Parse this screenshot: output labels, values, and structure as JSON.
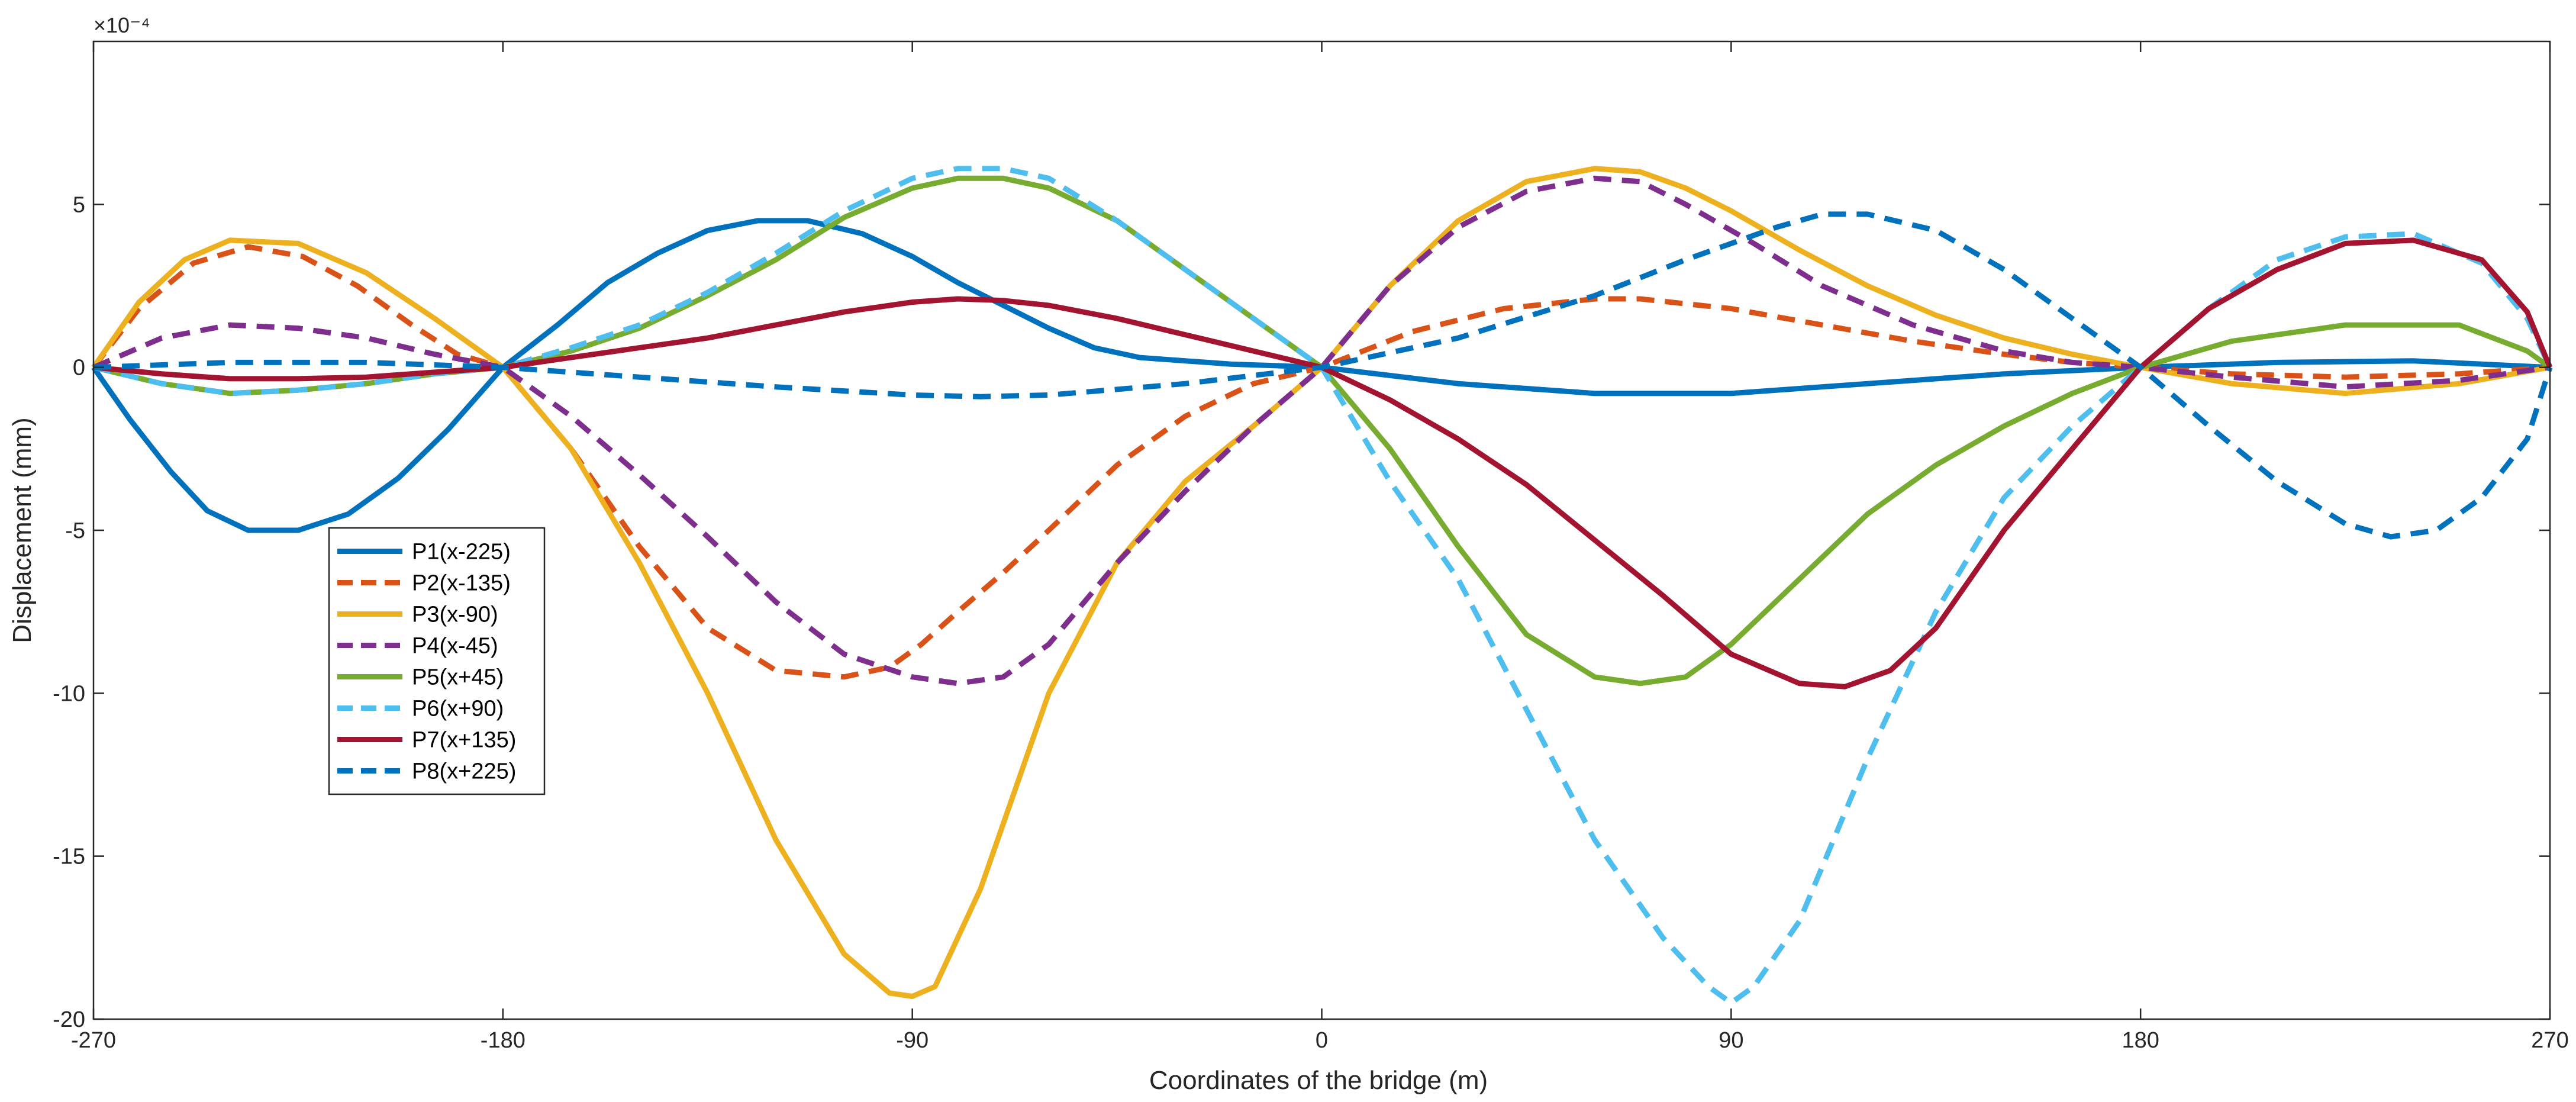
{
  "chart_data": {
    "type": "line",
    "xlabel": "Coordinates of the bridge (m)",
    "ylabel": "Displacement (mm)",
    "y_exponent_label": "×10⁻⁴",
    "xlim": [
      -270,
      270
    ],
    "ylim": [
      -20,
      10
    ],
    "x_ticks": [
      -270,
      -180,
      -90,
      0,
      90,
      180,
      270
    ],
    "y_ticks": [
      -20,
      -15,
      -10,
      -5,
      0,
      5
    ],
    "x_tick_labels": [
      "-270",
      "-180",
      "-90",
      "0",
      "90",
      "180",
      "270"
    ],
    "y_tick_labels": [
      "-20",
      "-15",
      "-10",
      "-5",
      "0",
      "5"
    ],
    "legend_position": "left-center",
    "grid": false,
    "series": [
      {
        "name": "P1(x-225)",
        "color": "#0072BD",
        "dash": "solid",
        "x": [
          -270,
          -262,
          -253,
          -245,
          -236,
          -225,
          -214,
          -203,
          -192,
          -180,
          -168,
          -157,
          -146,
          -135,
          -124,
          -113,
          -101,
          -90,
          -80,
          -70,
          -60,
          -50,
          -40,
          -30,
          -20,
          -10,
          0,
          30,
          60,
          90,
          120,
          150,
          180,
          210,
          240,
          270
        ],
        "y": [
          0,
          -1.6,
          -3.2,
          -4.4,
          -5.0,
          -5.0,
          -4.5,
          -3.4,
          -1.9,
          0,
          1.3,
          2.6,
          3.5,
          4.2,
          4.5,
          4.5,
          4.1,
          3.4,
          2.6,
          1.9,
          1.2,
          0.6,
          0.3,
          0.2,
          0.1,
          0.05,
          0,
          -0.5,
          -0.8,
          -0.8,
          -0.5,
          -0.2,
          0,
          0.15,
          0.2,
          0
        ]
      },
      {
        "name": "P2(x-135)",
        "color": "#D95319",
        "dash": "dashed",
        "x": [
          -270,
          -260,
          -248,
          -236,
          -224,
          -212,
          -200,
          -190,
          -180,
          -165,
          -150,
          -135,
          -120,
          -105,
          -95,
          -88,
          -80,
          -70,
          -60,
          -45,
          -30,
          -15,
          0,
          20,
          40,
          60,
          70,
          90,
          110,
          130,
          150,
          165,
          180,
          200,
          225,
          250,
          270
        ],
        "y": [
          0,
          1.8,
          3.2,
          3.7,
          3.4,
          2.5,
          1.3,
          0.4,
          0,
          -2.5,
          -5.5,
          -8.0,
          -9.3,
          -9.5,
          -9.2,
          -8.5,
          -7.5,
          -6.3,
          -5.0,
          -3.0,
          -1.5,
          -0.5,
          0,
          1.1,
          1.8,
          2.1,
          2.1,
          1.8,
          1.3,
          0.8,
          0.4,
          0.15,
          0,
          -0.2,
          -0.3,
          -0.2,
          0
        ]
      },
      {
        "name": "P3(x-90)",
        "color": "#EDB120",
        "dash": "solid",
        "x": [
          -270,
          -260,
          -250,
          -240,
          -225,
          -210,
          -195,
          -180,
          -165,
          -150,
          -135,
          -120,
          -105,
          -95,
          -90,
          -85,
          -75,
          -60,
          -45,
          -30,
          -15,
          0,
          15,
          30,
          45,
          60,
          70,
          80,
          90,
          105,
          120,
          135,
          150,
          165,
          180,
          200,
          225,
          250,
          270
        ],
        "y": [
          0,
          2.0,
          3.3,
          3.9,
          3.8,
          2.9,
          1.5,
          0,
          -2.5,
          -6.0,
          -10.0,
          -14.5,
          -18.0,
          -19.2,
          -19.3,
          -19.0,
          -16.0,
          -10.0,
          -6.0,
          -3.5,
          -1.8,
          0,
          2.5,
          4.5,
          5.7,
          6.1,
          6.0,
          5.5,
          4.8,
          3.6,
          2.5,
          1.6,
          0.9,
          0.4,
          0,
          -0.5,
          -0.8,
          -0.5,
          0
        ]
      },
      {
        "name": "P4(x-45)",
        "color": "#7E2F8E",
        "dash": "dashed",
        "x": [
          -270,
          -255,
          -240,
          -225,
          -210,
          -195,
          -180,
          -165,
          -150,
          -135,
          -120,
          -105,
          -90,
          -80,
          -70,
          -60,
          -45,
          -30,
          -15,
          0,
          15,
          30,
          45,
          60,
          70,
          80,
          95,
          110,
          130,
          150,
          165,
          180,
          200,
          225,
          250,
          270
        ],
        "y": [
          0,
          0.9,
          1.3,
          1.2,
          0.9,
          0.4,
          0,
          -1.5,
          -3.3,
          -5.2,
          -7.2,
          -8.8,
          -9.5,
          -9.7,
          -9.5,
          -8.5,
          -6.0,
          -3.8,
          -1.8,
          0,
          2.5,
          4.3,
          5.4,
          5.8,
          5.7,
          5.0,
          3.8,
          2.5,
          1.3,
          0.5,
          0.15,
          0,
          -0.3,
          -0.6,
          -0.4,
          0
        ]
      },
      {
        "name": "P5(x+45)",
        "color": "#77AC30",
        "dash": "solid",
        "x": [
          -270,
          -255,
          -240,
          -225,
          -210,
          -195,
          -180,
          -165,
          -150,
          -135,
          -120,
          -105,
          -90,
          -80,
          -70,
          -60,
          -45,
          -30,
          -15,
          0,
          15,
          30,
          45,
          60,
          70,
          80,
          90,
          105,
          120,
          135,
          150,
          165,
          180,
          200,
          225,
          250,
          265,
          270
        ],
        "y": [
          0,
          -0.5,
          -0.8,
          -0.7,
          -0.5,
          -0.2,
          0,
          0.5,
          1.2,
          2.2,
          3.3,
          4.6,
          5.5,
          5.8,
          5.8,
          5.5,
          4.5,
          3.0,
          1.5,
          0,
          -2.5,
          -5.5,
          -8.2,
          -9.5,
          -9.7,
          -9.5,
          -8.5,
          -6.5,
          -4.5,
          -3.0,
          -1.8,
          -0.8,
          0,
          0.8,
          1.3,
          1.3,
          0.5,
          0
        ]
      },
      {
        "name": "P6(x+90)",
        "color": "#4DBEEE",
        "dash": "dashed",
        "x": [
          -270,
          -255,
          -240,
          -225,
          -210,
          -195,
          -180,
          -165,
          -150,
          -135,
          -120,
          -105,
          -90,
          -80,
          -70,
          -60,
          -45,
          -30,
          -15,
          0,
          15,
          30,
          45,
          60,
          75,
          85,
          90,
          95,
          105,
          120,
          135,
          150,
          165,
          180,
          195,
          210,
          225,
          240,
          255,
          265,
          270
        ],
        "y": [
          0,
          -0.5,
          -0.8,
          -0.7,
          -0.5,
          -0.2,
          0,
          0.6,
          1.3,
          2.3,
          3.5,
          4.8,
          5.8,
          6.1,
          6.1,
          5.8,
          4.5,
          3.0,
          1.5,
          0,
          -3.5,
          -6.5,
          -10.5,
          -14.5,
          -17.5,
          -19.0,
          -19.5,
          -19.0,
          -17.0,
          -12.0,
          -7.5,
          -4.0,
          -1.8,
          0,
          1.8,
          3.3,
          4.0,
          4.1,
          3.2,
          1.5,
          0
        ]
      },
      {
        "name": "P7(x+135)",
        "color": "#A2142F",
        "dash": "solid",
        "x": [
          -270,
          -255,
          -240,
          -225,
          -210,
          -195,
          -180,
          -165,
          -150,
          -135,
          -120,
          -105,
          -90,
          -80,
          -70,
          -60,
          -45,
          -30,
          -15,
          0,
          15,
          30,
          45,
          60,
          75,
          90,
          105,
          115,
          125,
          135,
          150,
          165,
          180,
          195,
          210,
          225,
          240,
          255,
          265,
          270
        ],
        "y": [
          0,
          -0.2,
          -0.35,
          -0.35,
          -0.3,
          -0.15,
          0,
          0.3,
          0.6,
          0.9,
          1.3,
          1.7,
          2.0,
          2.1,
          2.05,
          1.9,
          1.5,
          1.0,
          0.5,
          0,
          -1.0,
          -2.2,
          -3.6,
          -5.3,
          -7.0,
          -8.8,
          -9.7,
          -9.8,
          -9.3,
          -8.0,
          -5.0,
          -2.5,
          0,
          1.8,
          3.0,
          3.8,
          3.9,
          3.3,
          1.7,
          0
        ]
      },
      {
        "name": "P8(x+225)",
        "color": "#0072BD",
        "dash": "dashed",
        "x": [
          -270,
          -240,
          -210,
          -180,
          -150,
          -120,
          -90,
          -75,
          -60,
          -30,
          0,
          30,
          60,
          80,
          100,
          110,
          120,
          135,
          150,
          165,
          180,
          195,
          210,
          225,
          235,
          245,
          255,
          265,
          270
        ],
        "y": [
          0,
          0.15,
          0.15,
          0,
          -0.3,
          -0.6,
          -0.85,
          -0.9,
          -0.85,
          -0.5,
          0,
          0.9,
          2.2,
          3.3,
          4.3,
          4.7,
          4.7,
          4.2,
          3.0,
          1.5,
          0,
          -1.8,
          -3.5,
          -4.8,
          -5.2,
          -5.0,
          -4.0,
          -2.2,
          0
        ]
      }
    ]
  }
}
